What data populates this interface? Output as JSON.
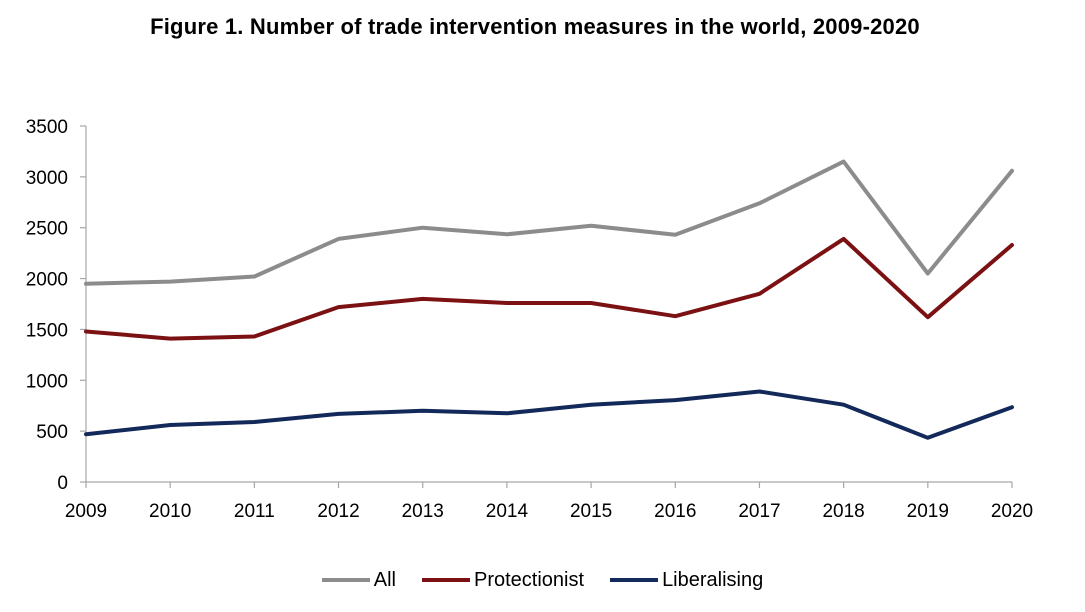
{
  "chart_data": {
    "type": "line",
    "title": "Figure 1. Number of trade intervention measures in the world, 2009-2020",
    "xlabel": "",
    "ylabel": "",
    "categories": [
      "2009",
      "2010",
      "2011",
      "2012",
      "2013",
      "2014",
      "2015",
      "2016",
      "2017",
      "2018",
      "2019",
      "2020"
    ],
    "ylim": [
      0,
      3500
    ],
    "yticks": [
      0,
      500,
      1000,
      1500,
      2000,
      2500,
      3000,
      3500
    ],
    "grid": false,
    "legend_position": "bottom",
    "series": [
      {
        "name": "All",
        "color": "#8c8c8c",
        "values": [
          1950,
          1970,
          2020,
          2390,
          2500,
          2435,
          2520,
          2430,
          2740,
          3150,
          2050,
          3060
        ]
      },
      {
        "name": "Protectionist",
        "color": "#7b1113",
        "values": [
          1480,
          1410,
          1430,
          1720,
          1800,
          1760,
          1760,
          1630,
          1850,
          2390,
          1620,
          2330
        ]
      },
      {
        "name": "Liberalising",
        "color": "#13295a",
        "values": [
          470,
          560,
          590,
          670,
          700,
          675,
          760,
          805,
          890,
          760,
          435,
          735
        ]
      }
    ]
  }
}
